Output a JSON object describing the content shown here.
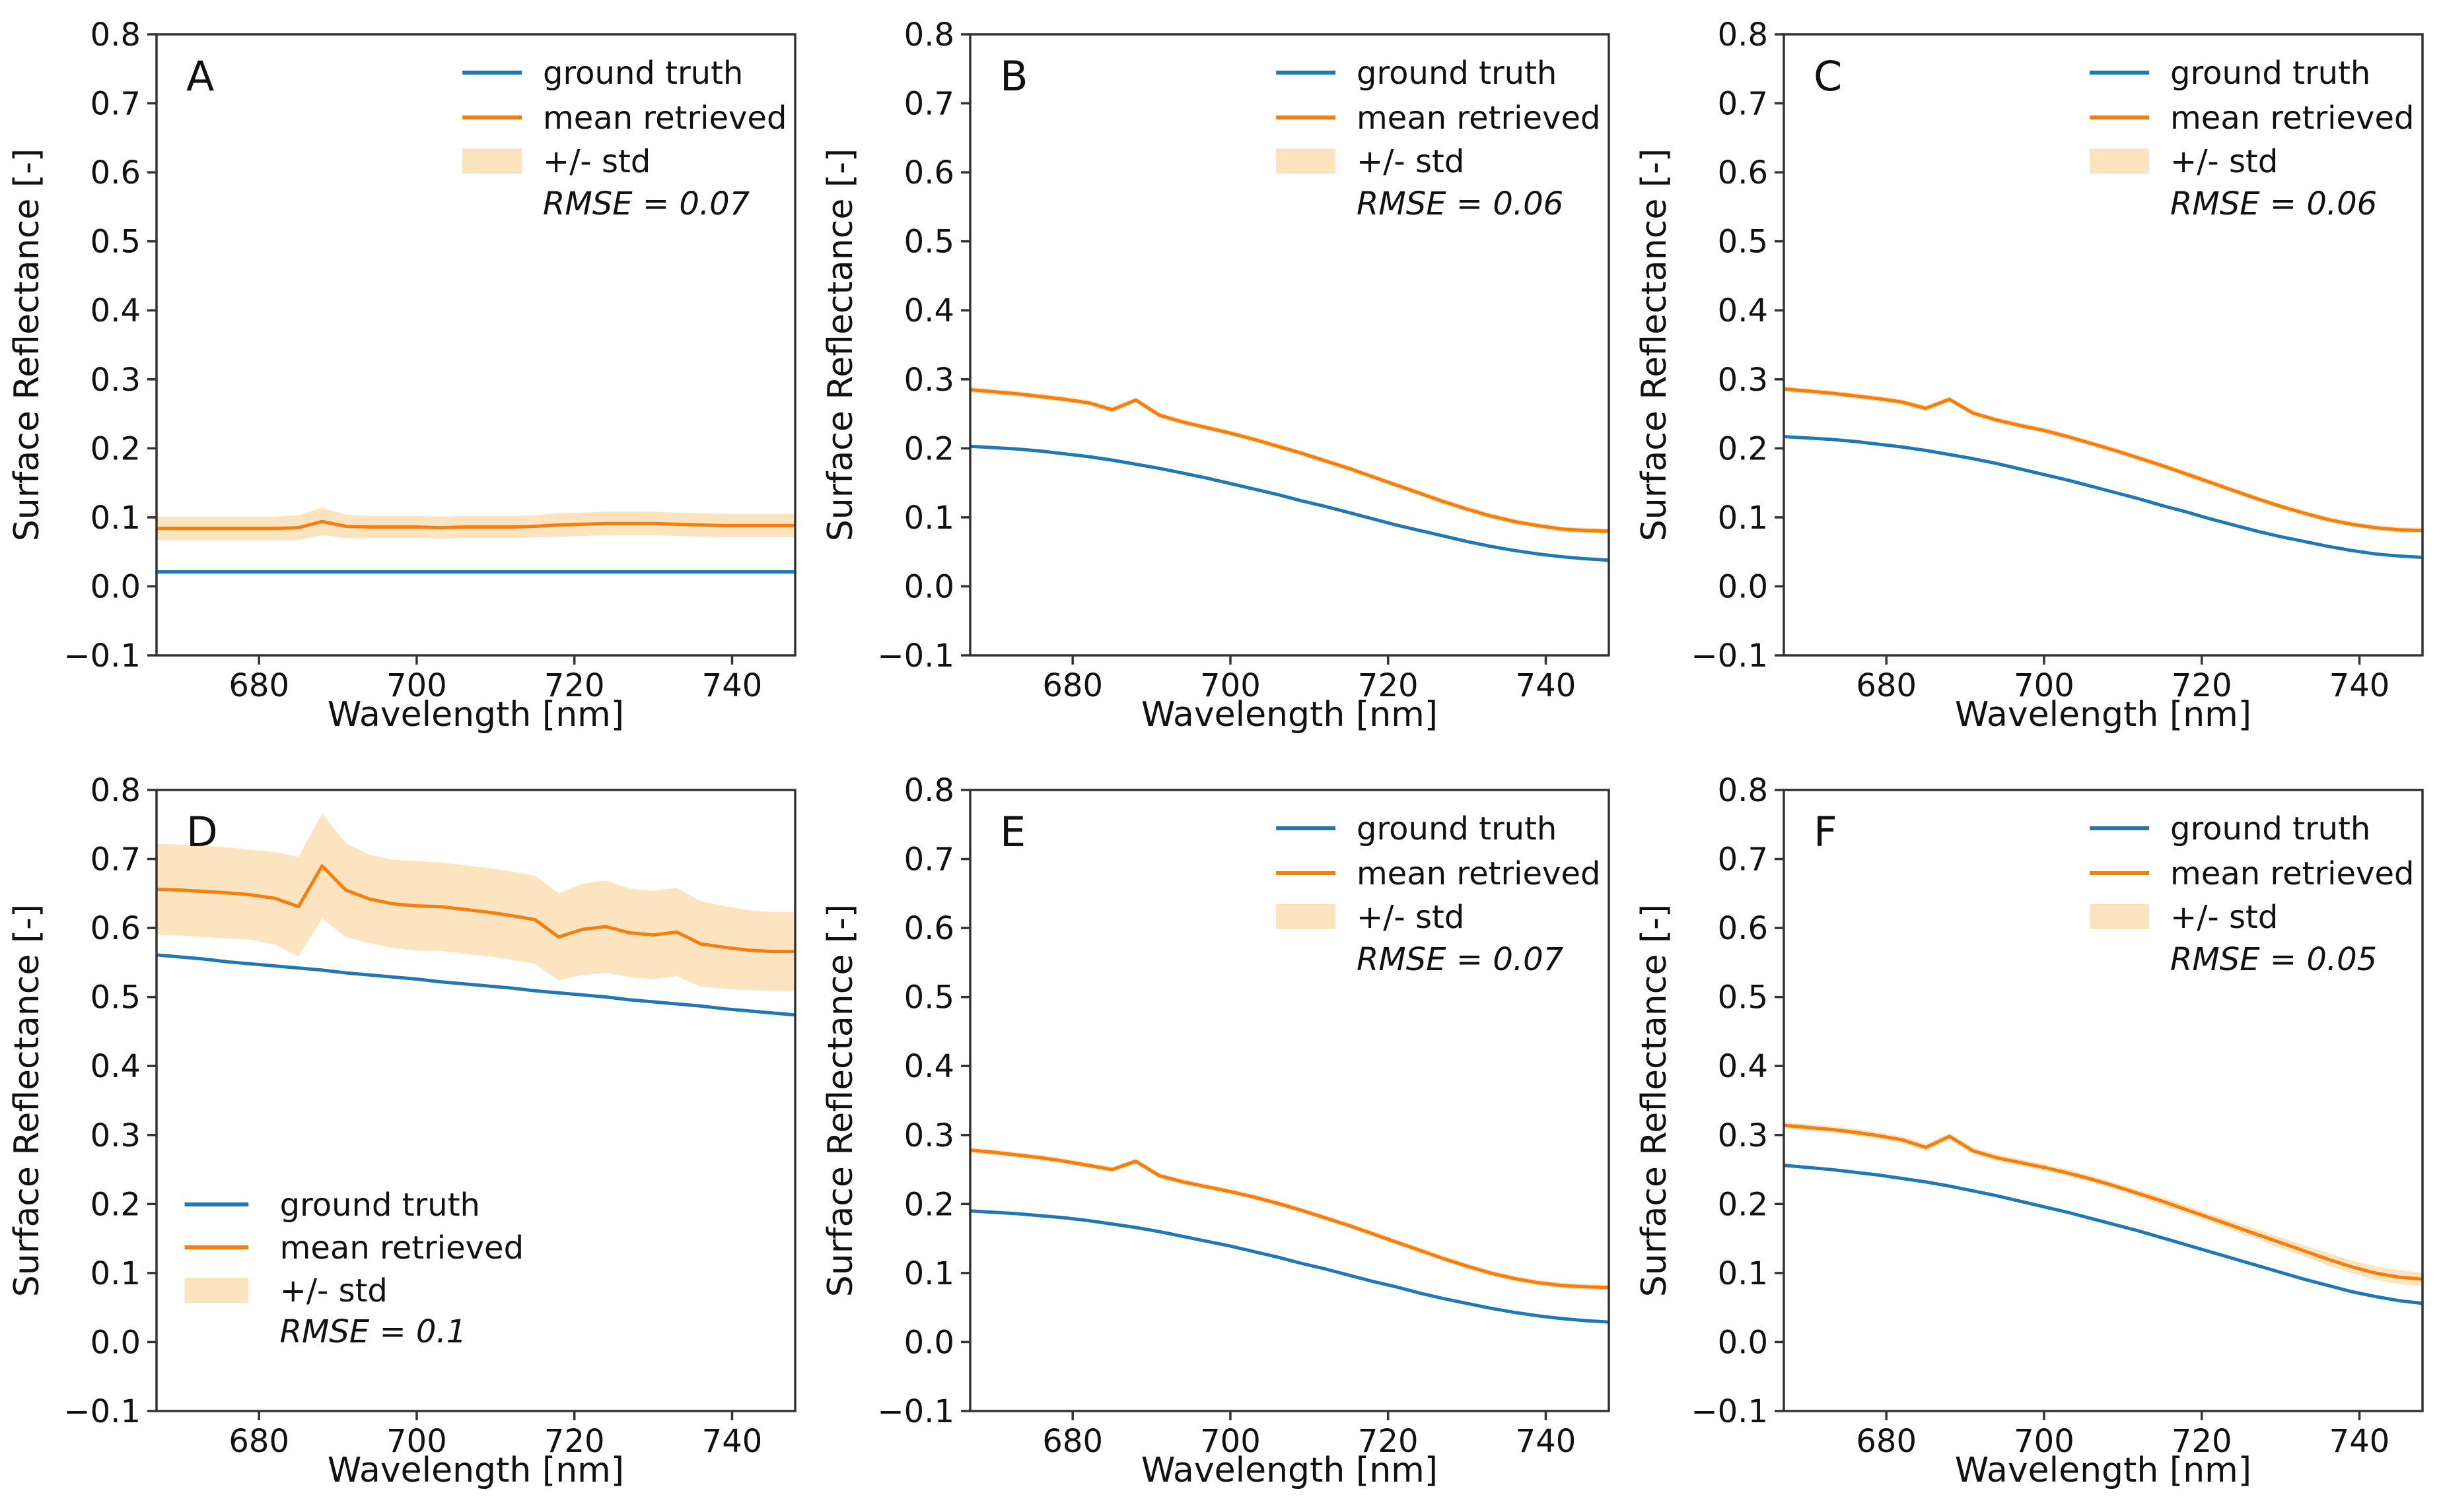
{
  "figure": {
    "xlabel": "Wavelength [nm]",
    "ylabel": "Surface Reflectance [-]",
    "xlim": [
      667,
      748
    ],
    "ylim": [
      -0.1,
      0.8
    ],
    "xticks": [
      680,
      700,
      720,
      740
    ],
    "yticks": [
      0.8,
      0.7,
      0.6,
      0.5,
      0.4,
      0.3,
      0.2,
      0.1,
      0.0,
      -0.1
    ],
    "legend_labels": {
      "ground_truth": "ground truth",
      "mean_retrieved": "mean retrieved",
      "std": "+/- std"
    },
    "colors": {
      "ground_truth": "#1f77b4",
      "mean_retrieved": "#f57f0e",
      "std_fill": "#fde4c0",
      "axes": "#333333",
      "text": "#111111",
      "background": "#ffffff"
    }
  },
  "chart_data": [
    {
      "label": "A",
      "type": "line",
      "rmse": 0.07,
      "rmse_label": "RMSE = 0.07",
      "legend_position": "upper-right",
      "x": [
        667,
        670,
        673,
        676,
        679,
        682,
        685,
        688,
        691,
        694,
        697,
        700,
        703,
        706,
        709,
        712,
        715,
        718,
        721,
        724,
        727,
        730,
        733,
        736,
        739,
        742,
        745,
        748
      ],
      "series": [
        {
          "name": "ground truth",
          "values": [
            0.021,
            0.021,
            0.021,
            0.021,
            0.021,
            0.021,
            0.021,
            0.021,
            0.021,
            0.021,
            0.021,
            0.021,
            0.021,
            0.021,
            0.021,
            0.021,
            0.021,
            0.021,
            0.021,
            0.021,
            0.021,
            0.021,
            0.021,
            0.021,
            0.021,
            0.021,
            0.021,
            0.021
          ]
        },
        {
          "name": "mean retrieved",
          "values": [
            0.084,
            0.084,
            0.084,
            0.084,
            0.084,
            0.084,
            0.085,
            0.094,
            0.087,
            0.086,
            0.086,
            0.086,
            0.085,
            0.086,
            0.086,
            0.086,
            0.087,
            0.089,
            0.09,
            0.091,
            0.091,
            0.091,
            0.09,
            0.089,
            0.088,
            0.088,
            0.088,
            0.088
          ]
        },
        {
          "name": "+/- std",
          "band_half_width": [
            0.017,
            0.017,
            0.017,
            0.017,
            0.017,
            0.017,
            0.018,
            0.02,
            0.017,
            0.016,
            0.016,
            0.016,
            0.016,
            0.016,
            0.016,
            0.016,
            0.016,
            0.017,
            0.017,
            0.017,
            0.017,
            0.017,
            0.017,
            0.017,
            0.017,
            0.017,
            0.017,
            0.017
          ]
        }
      ]
    },
    {
      "label": "B",
      "type": "line",
      "rmse": 0.06,
      "rmse_label": "RMSE = 0.06",
      "legend_position": "upper-right",
      "x": [
        667,
        670,
        673,
        676,
        679,
        682,
        685,
        688,
        691,
        694,
        697,
        700,
        703,
        706,
        709,
        712,
        715,
        718,
        721,
        724,
        727,
        730,
        733,
        736,
        739,
        742,
        745,
        748
      ],
      "series": [
        {
          "name": "ground truth",
          "values": [
            0.203,
            0.201,
            0.199,
            0.196,
            0.192,
            0.188,
            0.183,
            0.177,
            0.171,
            0.164,
            0.157,
            0.149,
            0.141,
            0.133,
            0.124,
            0.116,
            0.107,
            0.098,
            0.089,
            0.081,
            0.073,
            0.065,
            0.058,
            0.052,
            0.047,
            0.043,
            0.04,
            0.038
          ]
        },
        {
          "name": "mean retrieved",
          "values": [
            0.285,
            0.282,
            0.279,
            0.275,
            0.271,
            0.266,
            0.256,
            0.27,
            0.248,
            0.238,
            0.23,
            0.222,
            0.213,
            0.203,
            0.193,
            0.182,
            0.171,
            0.159,
            0.147,
            0.135,
            0.123,
            0.112,
            0.102,
            0.094,
            0.088,
            0.083,
            0.081,
            0.08
          ]
        },
        {
          "name": "+/- std",
          "band_half_width": 0.004
        }
      ]
    },
    {
      "label": "C",
      "type": "line",
      "rmse": 0.06,
      "rmse_label": "RMSE = 0.06",
      "legend_position": "upper-right",
      "x": [
        667,
        670,
        673,
        676,
        679,
        682,
        685,
        688,
        691,
        694,
        697,
        700,
        703,
        706,
        709,
        712,
        715,
        718,
        721,
        724,
        727,
        730,
        733,
        736,
        739,
        742,
        745,
        748
      ],
      "series": [
        {
          "name": "ground truth",
          "values": [
            0.217,
            0.215,
            0.213,
            0.21,
            0.206,
            0.202,
            0.197,
            0.191,
            0.185,
            0.178,
            0.17,
            0.162,
            0.154,
            0.145,
            0.136,
            0.127,
            0.117,
            0.108,
            0.098,
            0.089,
            0.08,
            0.072,
            0.065,
            0.058,
            0.052,
            0.047,
            0.044,
            0.042
          ]
        },
        {
          "name": "mean retrieved",
          "values": [
            0.286,
            0.283,
            0.28,
            0.276,
            0.272,
            0.267,
            0.258,
            0.271,
            0.251,
            0.241,
            0.233,
            0.226,
            0.217,
            0.207,
            0.197,
            0.186,
            0.175,
            0.163,
            0.151,
            0.139,
            0.127,
            0.116,
            0.106,
            0.097,
            0.09,
            0.085,
            0.082,
            0.081
          ]
        },
        {
          "name": "+/- std",
          "band_half_width": 0.004
        }
      ]
    },
    {
      "label": "D",
      "type": "line",
      "rmse": 0.1,
      "rmse_label": "RMSE = 0.1",
      "legend_position": "lower-left",
      "x": [
        667,
        670,
        673,
        676,
        679,
        682,
        685,
        688,
        691,
        694,
        697,
        700,
        703,
        706,
        709,
        712,
        715,
        718,
        721,
        724,
        727,
        730,
        733,
        736,
        739,
        742,
        745,
        748
      ],
      "series": [
        {
          "name": "ground truth",
          "values": [
            0.561,
            0.558,
            0.555,
            0.551,
            0.548,
            0.545,
            0.542,
            0.539,
            0.535,
            0.532,
            0.529,
            0.526,
            0.522,
            0.519,
            0.516,
            0.513,
            0.509,
            0.506,
            0.503,
            0.5,
            0.496,
            0.493,
            0.49,
            0.487,
            0.483,
            0.48,
            0.477,
            0.474
          ]
        },
        {
          "name": "mean retrieved",
          "values": [
            0.656,
            0.655,
            0.653,
            0.651,
            0.648,
            0.643,
            0.631,
            0.69,
            0.655,
            0.642,
            0.635,
            0.632,
            0.631,
            0.627,
            0.623,
            0.618,
            0.612,
            0.587,
            0.598,
            0.602,
            0.593,
            0.59,
            0.594,
            0.577,
            0.572,
            0.568,
            0.566,
            0.566
          ]
        },
        {
          "name": "+/- std",
          "band_half_width": [
            0.066,
            0.066,
            0.066,
            0.066,
            0.065,
            0.067,
            0.072,
            0.076,
            0.068,
            0.064,
            0.064,
            0.065,
            0.064,
            0.064,
            0.064,
            0.064,
            0.064,
            0.063,
            0.066,
            0.067,
            0.064,
            0.064,
            0.064,
            0.062,
            0.06,
            0.058,
            0.057,
            0.057
          ]
        }
      ]
    },
    {
      "label": "E",
      "type": "line",
      "rmse": 0.07,
      "rmse_label": "RMSE = 0.07",
      "legend_position": "upper-right",
      "x": [
        667,
        670,
        673,
        676,
        679,
        682,
        685,
        688,
        691,
        694,
        697,
        700,
        703,
        706,
        709,
        712,
        715,
        718,
        721,
        724,
        727,
        730,
        733,
        736,
        739,
        742,
        745,
        748
      ],
      "series": [
        {
          "name": "ground truth",
          "values": [
            0.19,
            0.188,
            0.186,
            0.183,
            0.18,
            0.176,
            0.171,
            0.166,
            0.16,
            0.153,
            0.146,
            0.139,
            0.131,
            0.123,
            0.114,
            0.106,
            0.097,
            0.088,
            0.08,
            0.071,
            0.063,
            0.056,
            0.049,
            0.043,
            0.038,
            0.034,
            0.031,
            0.029
          ]
        },
        {
          "name": "mean retrieved",
          "values": [
            0.278,
            0.275,
            0.271,
            0.267,
            0.262,
            0.256,
            0.25,
            0.262,
            0.241,
            0.232,
            0.225,
            0.218,
            0.21,
            0.201,
            0.191,
            0.18,
            0.169,
            0.157,
            0.145,
            0.133,
            0.121,
            0.11,
            0.1,
            0.092,
            0.086,
            0.082,
            0.08,
            0.079
          ]
        },
        {
          "name": "+/- std",
          "band_half_width": 0.004
        }
      ]
    },
    {
      "label": "F",
      "type": "line",
      "rmse": 0.05,
      "rmse_label": "RMSE = 0.05",
      "legend_position": "upper-right",
      "x": [
        667,
        670,
        673,
        676,
        679,
        682,
        685,
        688,
        691,
        694,
        697,
        700,
        703,
        706,
        709,
        712,
        715,
        718,
        721,
        724,
        727,
        730,
        733,
        736,
        739,
        742,
        745,
        748
      ],
      "series": [
        {
          "name": "ground truth",
          "values": [
            0.256,
            0.253,
            0.25,
            0.246,
            0.242,
            0.237,
            0.232,
            0.226,
            0.219,
            0.212,
            0.204,
            0.196,
            0.188,
            0.179,
            0.17,
            0.161,
            0.151,
            0.141,
            0.131,
            0.121,
            0.111,
            0.101,
            0.091,
            0.082,
            0.073,
            0.066,
            0.06,
            0.056
          ]
        },
        {
          "name": "mean retrieved",
          "values": [
            0.314,
            0.311,
            0.308,
            0.304,
            0.299,
            0.293,
            0.282,
            0.298,
            0.277,
            0.267,
            0.26,
            0.253,
            0.245,
            0.236,
            0.226,
            0.215,
            0.204,
            0.192,
            0.18,
            0.168,
            0.156,
            0.144,
            0.132,
            0.12,
            0.109,
            0.1,
            0.094,
            0.091
          ]
        },
        {
          "name": "+/- std",
          "band_half_width": [
            0.005,
            0.005,
            0.005,
            0.005,
            0.005,
            0.005,
            0.005,
            0.005,
            0.005,
            0.005,
            0.005,
            0.005,
            0.005,
            0.005,
            0.005,
            0.005,
            0.006,
            0.006,
            0.006,
            0.007,
            0.007,
            0.008,
            0.008,
            0.009,
            0.009,
            0.01,
            0.01,
            0.01
          ]
        }
      ]
    }
  ]
}
